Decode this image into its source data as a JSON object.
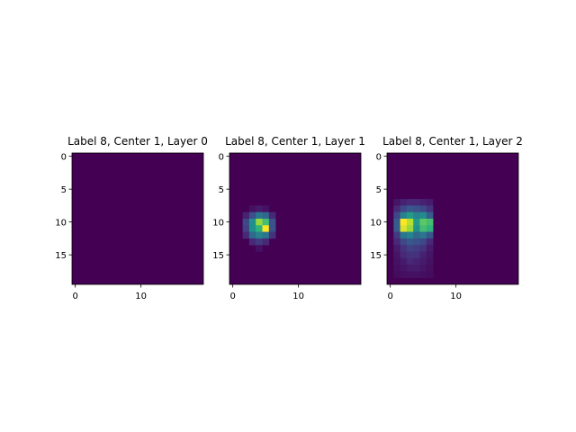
{
  "chart_data": [
    {
      "type": "heatmap",
      "title": "Label 8, Center 1, Layer 0",
      "xticks": [
        "0",
        "10"
      ],
      "yticks": [
        "0",
        "5",
        "10",
        "15"
      ],
      "xlim": [
        -0.5,
        19.5
      ],
      "ylim": [
        19.5,
        -0.5
      ],
      "colormap": "viridis",
      "rows": 20,
      "cols": 20,
      "nonzero_cells": []
    },
    {
      "type": "heatmap",
      "title": "Label 8, Center 1, Layer 1",
      "xticks": [
        "0",
        "10"
      ],
      "yticks": [
        "0",
        "5",
        "10",
        "15"
      ],
      "xlim": [
        -0.5,
        19.5
      ],
      "ylim": [
        19.5,
        -0.5
      ],
      "colormap": "viridis",
      "rows": 20,
      "cols": 20,
      "nonzero_cells": [
        {
          "row": 8,
          "col": 3,
          "value": 0.05
        },
        {
          "row": 8,
          "col": 4,
          "value": 0.08
        },
        {
          "row": 8,
          "col": 5,
          "value": 0.05
        },
        {
          "row": 9,
          "col": 2,
          "value": 0.1
        },
        {
          "row": 9,
          "col": 3,
          "value": 0.25
        },
        {
          "row": 9,
          "col": 4,
          "value": 0.4
        },
        {
          "row": 9,
          "col": 5,
          "value": 0.35
        },
        {
          "row": 9,
          "col": 6,
          "value": 0.12
        },
        {
          "row": 10,
          "col": 2,
          "value": 0.22
        },
        {
          "row": 10,
          "col": 3,
          "value": 0.5
        },
        {
          "row": 10,
          "col": 4,
          "value": 0.85
        },
        {
          "row": 10,
          "col": 5,
          "value": 0.7
        },
        {
          "row": 10,
          "col": 6,
          "value": 0.25
        },
        {
          "row": 11,
          "col": 2,
          "value": 0.2
        },
        {
          "row": 11,
          "col": 3,
          "value": 0.5
        },
        {
          "row": 11,
          "col": 4,
          "value": 0.65
        },
        {
          "row": 11,
          "col": 5,
          "value": 1.0
        },
        {
          "row": 11,
          "col": 6,
          "value": 0.25
        },
        {
          "row": 12,
          "col": 2,
          "value": 0.12
        },
        {
          "row": 12,
          "col": 3,
          "value": 0.35
        },
        {
          "row": 12,
          "col": 4,
          "value": 0.45
        },
        {
          "row": 12,
          "col": 5,
          "value": 0.4
        },
        {
          "row": 12,
          "col": 6,
          "value": 0.15
        },
        {
          "row": 13,
          "col": 3,
          "value": 0.12
        },
        {
          "row": 13,
          "col": 4,
          "value": 0.18
        },
        {
          "row": 13,
          "col": 5,
          "value": 0.12
        },
        {
          "row": 14,
          "col": 4,
          "value": 0.05
        }
      ]
    },
    {
      "type": "heatmap",
      "title": "Label 8, Center 1, Layer 2",
      "xticks": [
        "0",
        "10"
      ],
      "yticks": [
        "0",
        "5",
        "10",
        "15"
      ],
      "xlim": [
        -0.5,
        19.5
      ],
      "ylim": [
        19.5,
        -0.5
      ],
      "colormap": "viridis",
      "rows": 20,
      "cols": 20,
      "nonzero_cells": [
        {
          "row": 7,
          "col": 1,
          "value": 0.06
        },
        {
          "row": 7,
          "col": 2,
          "value": 0.1
        },
        {
          "row": 7,
          "col": 3,
          "value": 0.12
        },
        {
          "row": 7,
          "col": 4,
          "value": 0.12
        },
        {
          "row": 7,
          "col": 5,
          "value": 0.1
        },
        {
          "row": 7,
          "col": 6,
          "value": 0.08
        },
        {
          "row": 8,
          "col": 1,
          "value": 0.12
        },
        {
          "row": 8,
          "col": 2,
          "value": 0.22
        },
        {
          "row": 8,
          "col": 3,
          "value": 0.28
        },
        {
          "row": 8,
          "col": 4,
          "value": 0.25
        },
        {
          "row": 8,
          "col": 5,
          "value": 0.22
        },
        {
          "row": 8,
          "col": 6,
          "value": 0.15
        },
        {
          "row": 9,
          "col": 1,
          "value": 0.22
        },
        {
          "row": 9,
          "col": 2,
          "value": 0.45
        },
        {
          "row": 9,
          "col": 3,
          "value": 0.55
        },
        {
          "row": 9,
          "col": 4,
          "value": 0.45
        },
        {
          "row": 9,
          "col": 5,
          "value": 0.48
        },
        {
          "row": 9,
          "col": 6,
          "value": 0.3
        },
        {
          "row": 10,
          "col": 1,
          "value": 0.3
        },
        {
          "row": 10,
          "col": 2,
          "value": 1.0
        },
        {
          "row": 10,
          "col": 3,
          "value": 0.9
        },
        {
          "row": 10,
          "col": 4,
          "value": 0.55
        },
        {
          "row": 10,
          "col": 5,
          "value": 0.75
        },
        {
          "row": 10,
          "col": 6,
          "value": 0.7
        },
        {
          "row": 11,
          "col": 1,
          "value": 0.3
        },
        {
          "row": 11,
          "col": 2,
          "value": 0.95
        },
        {
          "row": 11,
          "col": 3,
          "value": 0.85
        },
        {
          "row": 11,
          "col": 4,
          "value": 0.5
        },
        {
          "row": 11,
          "col": 5,
          "value": 0.7
        },
        {
          "row": 11,
          "col": 6,
          "value": 0.65
        },
        {
          "row": 12,
          "col": 1,
          "value": 0.18
        },
        {
          "row": 12,
          "col": 2,
          "value": 0.4
        },
        {
          "row": 12,
          "col": 3,
          "value": 0.45
        },
        {
          "row": 12,
          "col": 4,
          "value": 0.35
        },
        {
          "row": 12,
          "col": 5,
          "value": 0.4
        },
        {
          "row": 12,
          "col": 6,
          "value": 0.28
        },
        {
          "row": 13,
          "col": 1,
          "value": 0.12
        },
        {
          "row": 13,
          "col": 2,
          "value": 0.22
        },
        {
          "row": 13,
          "col": 3,
          "value": 0.28
        },
        {
          "row": 13,
          "col": 4,
          "value": 0.25
        },
        {
          "row": 13,
          "col": 5,
          "value": 0.22
        },
        {
          "row": 13,
          "col": 6,
          "value": 0.12
        },
        {
          "row": 14,
          "col": 1,
          "value": 0.08
        },
        {
          "row": 14,
          "col": 2,
          "value": 0.15
        },
        {
          "row": 14,
          "col": 3,
          "value": 0.2
        },
        {
          "row": 14,
          "col": 4,
          "value": 0.18
        },
        {
          "row": 14,
          "col": 5,
          "value": 0.15
        },
        {
          "row": 14,
          "col": 6,
          "value": 0.08
        },
        {
          "row": 15,
          "col": 1,
          "value": 0.06
        },
        {
          "row": 15,
          "col": 2,
          "value": 0.12
        },
        {
          "row": 15,
          "col": 3,
          "value": 0.15
        },
        {
          "row": 15,
          "col": 4,
          "value": 0.15
        },
        {
          "row": 15,
          "col": 5,
          "value": 0.1
        },
        {
          "row": 15,
          "col": 6,
          "value": 0.06
        },
        {
          "row": 16,
          "col": 1,
          "value": 0.05
        },
        {
          "row": 16,
          "col": 2,
          "value": 0.08
        },
        {
          "row": 16,
          "col": 3,
          "value": 0.12
        },
        {
          "row": 16,
          "col": 4,
          "value": 0.1
        },
        {
          "row": 16,
          "col": 5,
          "value": 0.08
        },
        {
          "row": 16,
          "col": 6,
          "value": 0.05
        },
        {
          "row": 17,
          "col": 1,
          "value": 0.04
        },
        {
          "row": 17,
          "col": 2,
          "value": 0.06
        },
        {
          "row": 17,
          "col": 3,
          "value": 0.08
        },
        {
          "row": 17,
          "col": 4,
          "value": 0.08
        },
        {
          "row": 17,
          "col": 5,
          "value": 0.06
        },
        {
          "row": 17,
          "col": 6,
          "value": 0.04
        },
        {
          "row": 18,
          "col": 1,
          "value": 0.03
        },
        {
          "row": 18,
          "col": 2,
          "value": 0.04
        },
        {
          "row": 18,
          "col": 3,
          "value": 0.05
        },
        {
          "row": 18,
          "col": 4,
          "value": 0.05
        },
        {
          "row": 18,
          "col": 5,
          "value": 0.04
        },
        {
          "row": 18,
          "col": 6,
          "value": 0.03
        }
      ]
    }
  ]
}
